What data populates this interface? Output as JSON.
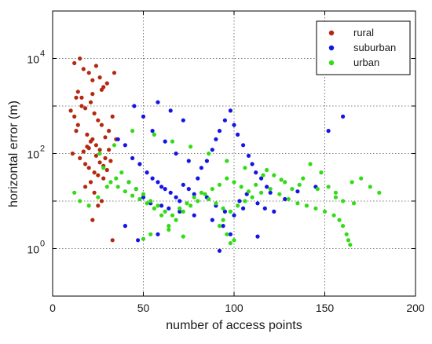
{
  "chart_data": {
    "type": "scatter",
    "title": "",
    "xlabel": "number of access points",
    "ylabel": "horizontal error (m)",
    "xlim": [
      0,
      200
    ],
    "ylim": [
      0.1,
      100000
    ],
    "yscale": "log",
    "xticks": [
      "0",
      "50",
      "100",
      "150",
      "200"
    ],
    "yticks": [
      {
        "value": 1,
        "base": "10",
        "exp": "0"
      },
      {
        "value": 100,
        "base": "10",
        "exp": "2"
      },
      {
        "value": 10000,
        "base": "10",
        "exp": "4"
      }
    ],
    "grid": "dotted",
    "legend_position": "top-right",
    "series": [
      {
        "name": "rural",
        "color": "#b4280f",
        "points": [
          [
            12,
            8000
          ],
          [
            15,
            10000
          ],
          [
            17,
            6000
          ],
          [
            20,
            5000
          ],
          [
            22,
            3500
          ],
          [
            24,
            7000
          ],
          [
            26,
            4000
          ],
          [
            28,
            2500
          ],
          [
            14,
            2000
          ],
          [
            16,
            1500
          ],
          [
            18,
            900
          ],
          [
            21,
            1200
          ],
          [
            23,
            700
          ],
          [
            25,
            500
          ],
          [
            27,
            400
          ],
          [
            13,
            300
          ],
          [
            19,
            250
          ],
          [
            22,
            200
          ],
          [
            24,
            150
          ],
          [
            26,
            120
          ],
          [
            11,
            100
          ],
          [
            15,
            80
          ],
          [
            18,
            60
          ],
          [
            20,
            50
          ],
          [
            23,
            40
          ],
          [
            25,
            35
          ],
          [
            28,
            30
          ],
          [
            30,
            45
          ],
          [
            32,
            70
          ],
          [
            17,
            110
          ],
          [
            19,
            140
          ],
          [
            21,
            180
          ],
          [
            29,
            220
          ],
          [
            31,
            300
          ],
          [
            33,
            600
          ],
          [
            16,
            1000
          ],
          [
            22,
            1800
          ],
          [
            27,
            2200
          ],
          [
            30,
            3000
          ],
          [
            34,
            5000
          ],
          [
            12,
            600
          ],
          [
            14,
            400
          ],
          [
            20,
            130
          ],
          [
            24,
            90
          ],
          [
            26,
            65
          ],
          [
            28,
            55
          ],
          [
            21,
            25
          ],
          [
            18,
            20
          ],
          [
            23,
            15
          ],
          [
            27,
            10
          ],
          [
            25,
            8
          ],
          [
            22,
            4
          ],
          [
            33,
            1.5
          ],
          [
            10,
            800
          ],
          [
            13,
            1500
          ],
          [
            35,
            200
          ],
          [
            31,
            120
          ],
          [
            29,
            80
          ]
        ]
      },
      {
        "name": "suburban",
        "color": "#1414e6",
        "points": [
          [
            36,
            200
          ],
          [
            40,
            150
          ],
          [
            44,
            80
          ],
          [
            48,
            60
          ],
          [
            52,
            40
          ],
          [
            55,
            30
          ],
          [
            58,
            25
          ],
          [
            60,
            20
          ],
          [
            62,
            18
          ],
          [
            65,
            15
          ],
          [
            68,
            12
          ],
          [
            70,
            10
          ],
          [
            72,
            22
          ],
          [
            75,
            18
          ],
          [
            78,
            14
          ],
          [
            80,
            30
          ],
          [
            82,
            50
          ],
          [
            85,
            70
          ],
          [
            88,
            120
          ],
          [
            90,
            200
          ],
          [
            92,
            300
          ],
          [
            95,
            500
          ],
          [
            98,
            800
          ],
          [
            100,
            400
          ],
          [
            102,
            250
          ],
          [
            105,
            150
          ],
          [
            108,
            90
          ],
          [
            110,
            60
          ],
          [
            112,
            40
          ],
          [
            115,
            30
          ],
          [
            118,
            20
          ],
          [
            120,
            15
          ],
          [
            58,
            1200
          ],
          [
            65,
            800
          ],
          [
            72,
            500
          ],
          [
            45,
            1000
          ],
          [
            50,
            600
          ],
          [
            55,
            300
          ],
          [
            62,
            180
          ],
          [
            68,
            100
          ],
          [
            75,
            70
          ],
          [
            85,
            12
          ],
          [
            90,
            8
          ],
          [
            95,
            6
          ],
          [
            100,
            5
          ],
          [
            105,
            7
          ],
          [
            42,
            25
          ],
          [
            46,
            18
          ],
          [
            50,
            12
          ],
          [
            54,
            9
          ],
          [
            60,
            8
          ],
          [
            64,
            7
          ],
          [
            70,
            6
          ],
          [
            78,
            5
          ],
          [
            88,
            4
          ],
          [
            94,
            3
          ],
          [
            98,
            2
          ],
          [
            103,
            10
          ],
          [
            107,
            14
          ],
          [
            113,
            9
          ],
          [
            117,
            7
          ],
          [
            122,
            6
          ],
          [
            128,
            11
          ],
          [
            135,
            16
          ],
          [
            145,
            20
          ],
          [
            152,
            300
          ],
          [
            160,
            600
          ],
          [
            40,
            3
          ],
          [
            47,
            1.5
          ],
          [
            58,
            2
          ],
          [
            92,
            0.9
          ],
          [
            113,
            1.8
          ]
        ]
      },
      {
        "name": "urban",
        "color": "#32dc14",
        "points": [
          [
            12,
            15
          ],
          [
            15,
            10
          ],
          [
            20,
            8
          ],
          [
            25,
            12
          ],
          [
            30,
            20
          ],
          [
            35,
            30
          ],
          [
            38,
            40
          ],
          [
            42,
            25
          ],
          [
            46,
            18
          ],
          [
            50,
            14
          ],
          [
            54,
            10
          ],
          [
            58,
            8
          ],
          [
            62,
            6
          ],
          [
            66,
            5
          ],
          [
            70,
            7
          ],
          [
            74,
            9
          ],
          [
            78,
            12
          ],
          [
            82,
            15
          ],
          [
            86,
            11
          ],
          [
            90,
            9
          ],
          [
            94,
            7
          ],
          [
            98,
            6
          ],
          [
            102,
            8
          ],
          [
            106,
            10
          ],
          [
            110,
            12
          ],
          [
            115,
            15
          ],
          [
            120,
            18
          ],
          [
            125,
            14
          ],
          [
            130,
            11
          ],
          [
            135,
            9
          ],
          [
            140,
            8
          ],
          [
            145,
            7
          ],
          [
            150,
            6
          ],
          [
            155,
            5
          ],
          [
            158,
            4
          ],
          [
            160,
            3
          ],
          [
            162,
            2
          ],
          [
            163,
            1.5
          ],
          [
            164,
            1.2
          ],
          [
            160,
            10
          ],
          [
            156,
            15
          ],
          [
            152,
            20
          ],
          [
            165,
            25
          ],
          [
            170,
            30
          ],
          [
            175,
            20
          ],
          [
            180,
            15
          ],
          [
            148,
            40
          ],
          [
            142,
            60
          ],
          [
            138,
            30
          ],
          [
            132,
            18
          ],
          [
            128,
            25
          ],
          [
            122,
            35
          ],
          [
            118,
            45
          ],
          [
            112,
            22
          ],
          [
            108,
            16
          ],
          [
            104,
            20
          ],
          [
            100,
            25
          ],
          [
            96,
            30
          ],
          [
            92,
            22
          ],
          [
            88,
            18
          ],
          [
            84,
            14
          ],
          [
            80,
            10
          ],
          [
            76,
            8
          ],
          [
            72,
            6
          ],
          [
            68,
            4
          ],
          [
            64,
            3
          ],
          [
            60,
            5
          ],
          [
            56,
            7
          ],
          [
            52,
            9
          ],
          [
            48,
            11
          ],
          [
            44,
            13
          ],
          [
            40,
            16
          ],
          [
            36,
            20
          ],
          [
            32,
            25
          ],
          [
            28,
            50
          ],
          [
            26,
            100
          ],
          [
            34,
            150
          ],
          [
            44,
            300
          ],
          [
            56,
            250
          ],
          [
            66,
            180
          ],
          [
            76,
            140
          ],
          [
            86,
            100
          ],
          [
            96,
            70
          ],
          [
            106,
            50
          ],
          [
            116,
            35
          ],
          [
            126,
            28
          ],
          [
            136,
            22
          ],
          [
            146,
            18
          ],
          [
            156,
            12
          ],
          [
            166,
            9
          ],
          [
            92,
            3
          ],
          [
            96,
            2
          ],
          [
            100,
            1.5
          ],
          [
            98,
            1.3
          ],
          [
            94,
            4
          ],
          [
            54,
            2
          ],
          [
            50,
            1.6
          ],
          [
            64,
            2.5
          ],
          [
            72,
            1.8
          ]
        ]
      }
    ]
  }
}
